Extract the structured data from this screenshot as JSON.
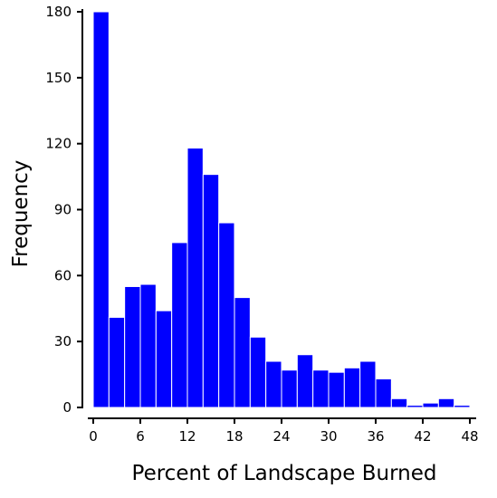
{
  "chart_data": {
    "type": "histogram",
    "xlabel": "Percent of Landscape Burned",
    "ylabel": "Frequency",
    "bins": [
      0,
      2,
      4,
      6,
      8,
      10,
      12,
      14,
      16,
      18,
      20,
      22,
      24,
      26,
      28,
      30,
      32,
      34,
      36,
      38,
      40,
      42,
      44,
      46,
      48
    ],
    "values": [
      180,
      41,
      55,
      56,
      44,
      75,
      118,
      106,
      84,
      50,
      32,
      21,
      17,
      24,
      17,
      16,
      18,
      21,
      13,
      4,
      1,
      2,
      4,
      1
    ],
    "color": "#0000ff",
    "xlim": [
      0,
      48
    ],
    "xticks": [
      0,
      6,
      12,
      18,
      24,
      30,
      36,
      42,
      48
    ],
    "ylim": [
      0,
      180
    ],
    "yticks": [
      0,
      30,
      60,
      90,
      120,
      150,
      180
    ]
  }
}
